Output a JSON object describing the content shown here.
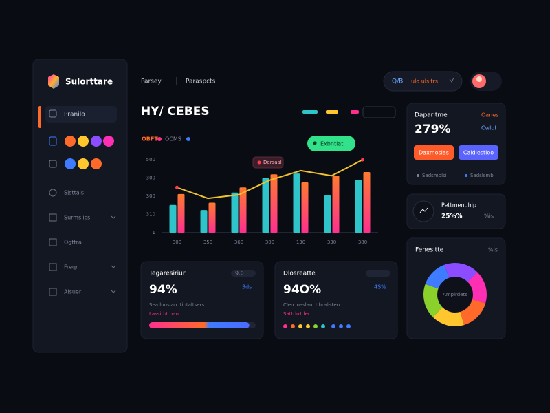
{
  "sidebar": {
    "brand": "Sulorttare",
    "items": [
      "Pranilo",
      "Sjsttals",
      "Surmslics",
      "Ogttra",
      "Freqr",
      "Alsuer"
    ]
  },
  "topbar": {
    "tabs": [
      "Parsey",
      "Paraspcts"
    ],
    "search": "Q/B",
    "search_hint": "ulo·ulsitrs"
  },
  "main_chart": {
    "type": "bar",
    "title": "HY/ CEBES",
    "subtitle": [
      "OBFT",
      "OCMS"
    ],
    "badge": "Exbntiat",
    "tooltip": "Dersaal",
    "y_labels": [
      "500",
      "300",
      "300",
      "310",
      "1"
    ],
    "categories": [
      "300",
      "350",
      "360",
      "300",
      "130",
      "330",
      "380"
    ],
    "ylim": [
      0,
      100
    ],
    "series": [
      {
        "color": "#2ec4c9",
        "values": [
          38,
          31,
          55,
          75,
          81,
          51,
          72
        ]
      },
      {
        "color": "#ff7a2f",
        "gradient_to": "#ff2f8f",
        "values": [
          53,
          41,
          62,
          80,
          69,
          78,
          83
        ]
      }
    ],
    "line": {
      "color": "#f2c12e",
      "values": [
        62,
        47,
        52,
        72,
        85,
        78,
        100
      ]
    }
  },
  "cards": [
    {
      "title": "Tegaresiriur",
      "tag": "9.0",
      "value": "94%",
      "delta": "3ds",
      "note": "Sea lunslarc tibtaltsers",
      "sub": "Lassirbt uan",
      "progress": 94
    },
    {
      "title": "Dlosreatte",
      "value": "94O%",
      "delta": "4S%",
      "note": "Cleo loaslarc tibralisten",
      "sub": "Sattrlrrt ler"
    }
  ],
  "stats": {
    "title": "Daparitme",
    "badge": "Oanes",
    "value": "279%",
    "badge2": "Cwldl",
    "btn1": "Daxmoslas",
    "btn2": "Caldlestioo",
    "foot1": "Sadsmblsi",
    "foot2": "Sadslsmbi"
  },
  "stat2": {
    "title": "Pettmenuhip",
    "value": "25%%",
    "delta": "%is"
  },
  "donut": {
    "title": "Fenesitte",
    "tag": "%is",
    "center": "Amplrdets",
    "values": [
      18,
      17,
      16,
      17,
      18,
      14
    ],
    "colors": [
      "#8b4dff",
      "#ff2fb4",
      "#ff6a2a",
      "#ffc62e",
      "#8ad12c",
      "#3f7bff"
    ]
  }
}
